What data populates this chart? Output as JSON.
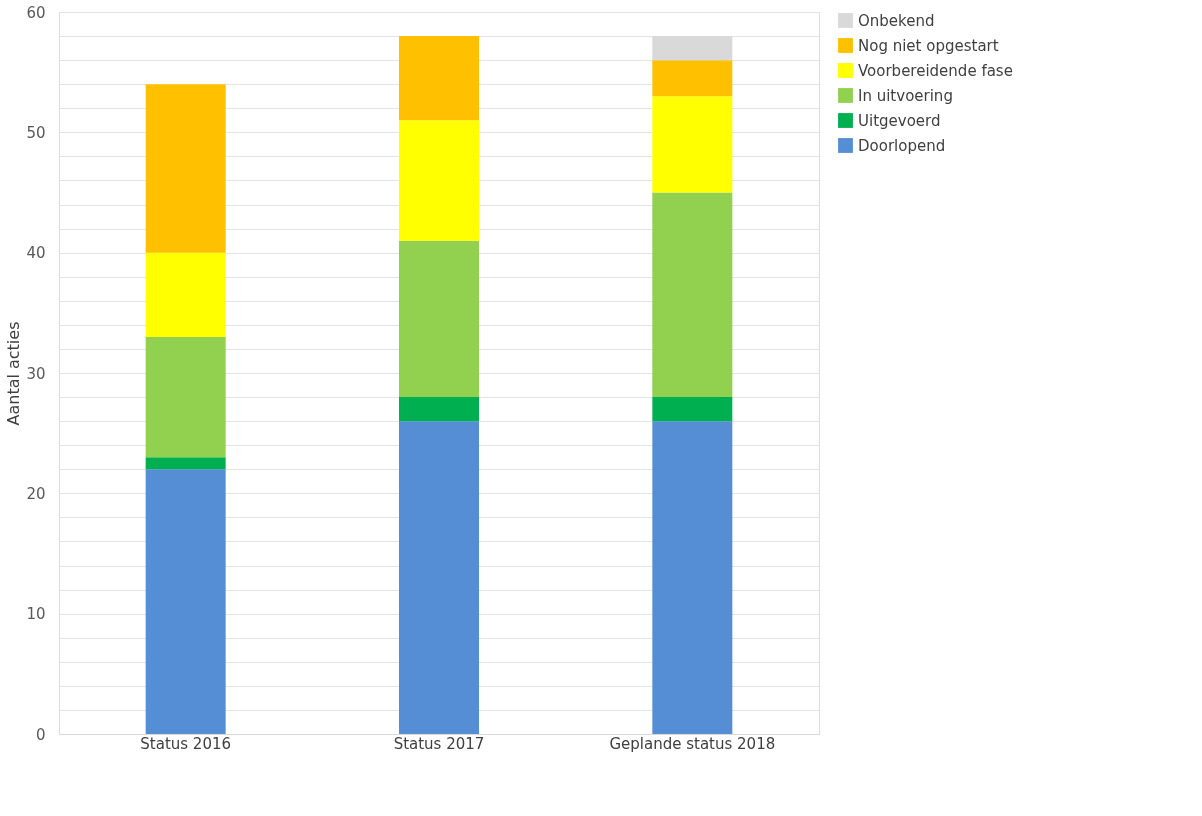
{
  "chart_data": {
    "type": "bar",
    "stacked": true,
    "ylabel": "Aantal acties",
    "categories": [
      "Status 2016",
      "Status 2017",
      "Geplande status 2018"
    ],
    "series": [
      {
        "name": "Doorlopend",
        "color": "#558ed5",
        "values": [
          22,
          26,
          26
        ]
      },
      {
        "name": "Uitgevoerd",
        "color": "#00b050",
        "values": [
          1,
          2,
          2
        ]
      },
      {
        "name": "In uitvoering",
        "color": "#92d050",
        "values": [
          10,
          13,
          17
        ]
      },
      {
        "name": "Voorbereidende fase",
        "color": "#ffff00",
        "values": [
          7,
          10,
          8
        ]
      },
      {
        "name": "Nog niet opgestart",
        "color": "#ffc000",
        "values": [
          14,
          7,
          3
        ]
      },
      {
        "name": "Onbekend",
        "color": "#d9d9d9",
        "values": [
          0,
          0,
          2
        ]
      }
    ],
    "ylim": [
      0,
      60
    ],
    "yticks": [
      0,
      {
        "value": 2,
        "label": null
      },
      {
        "value": 4,
        "label": null
      },
      {
        "value": 6,
        "label": null
      },
      {
        "value": 8,
        "label": null
      },
      10,
      {
        "value": 12,
        "label": null
      },
      {
        "value": 14,
        "label": null
      },
      {
        "value": 16,
        "label": null
      },
      {
        "value": 18,
        "label": null
      },
      20,
      {
        "value": 22,
        "label": null
      },
      {
        "value": 24,
        "label": null
      },
      {
        "value": 26,
        "label": null
      },
      {
        "value": 28,
        "label": null
      },
      30,
      {
        "value": 32,
        "label": null
      },
      {
        "value": 34,
        "label": null
      },
      {
        "value": 36,
        "label": null
      },
      {
        "value": 38,
        "label": null
      },
      40,
      {
        "value": 42,
        "label": null
      },
      {
        "value": 44,
        "label": null
      },
      {
        "value": 46,
        "label": null
      },
      {
        "value": 48,
        "label": null
      },
      50,
      {
        "value": 52,
        "label": null
      },
      {
        "value": 54,
        "label": null
      },
      {
        "value": 56,
        "label": null
      },
      {
        "value": 58,
        "label": null
      },
      60
    ],
    "grid": "y",
    "legend": "right"
  }
}
